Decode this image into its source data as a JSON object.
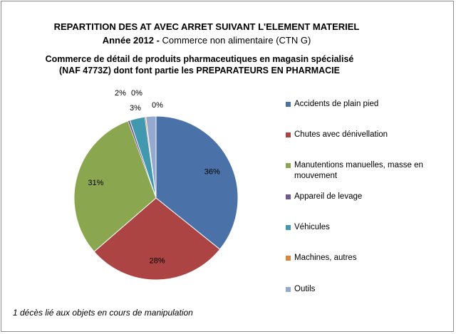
{
  "title": "REPARTITION DES AT AVEC ARRET SUIVANT L'ELEMENT MATERIEL",
  "subtitle_year": "Année 2012",
  "subtitle_sep": " - ",
  "subtitle_sector": "Commerce non alimentaire (CTN G)",
  "subtitle_line3": "Commerce de détail de produits pharmaceutiques en magasin spécialisé",
  "subtitle_line4": "(NAF 4773Z) dont font partie les PREPARATEURS EN  PHARMACIE",
  "footnote": "1 décès lié aux objets en cours de manipulation",
  "chart_data": {
    "type": "pie",
    "legend_position": "right",
    "slices": [
      {
        "label": "Accidents de plain pied",
        "value": 36,
        "data_label": "36%",
        "color": "#4a72a8"
      },
      {
        "label": "Chutes avec dénivellation",
        "value": 28,
        "data_label": "28%",
        "color": "#ab4442"
      },
      {
        "label": "Manutentions manuelles, masse en mouvement",
        "value": 31,
        "data_label": "31%",
        "color": "#8aa64f"
      },
      {
        "label": "Appareil de levage",
        "value": 0.4,
        "data_label": "0%",
        "color": "#71588f"
      },
      {
        "label": "Véhicules",
        "value": 3,
        "data_label": "3%",
        "color": "#4298ae"
      },
      {
        "label": "Machines, autres",
        "value": 0.2,
        "data_label": "0%",
        "color": "#db843d"
      },
      {
        "label": "Outils",
        "value": 2,
        "data_label": "2%",
        "color": "#93a9cf"
      }
    ]
  }
}
